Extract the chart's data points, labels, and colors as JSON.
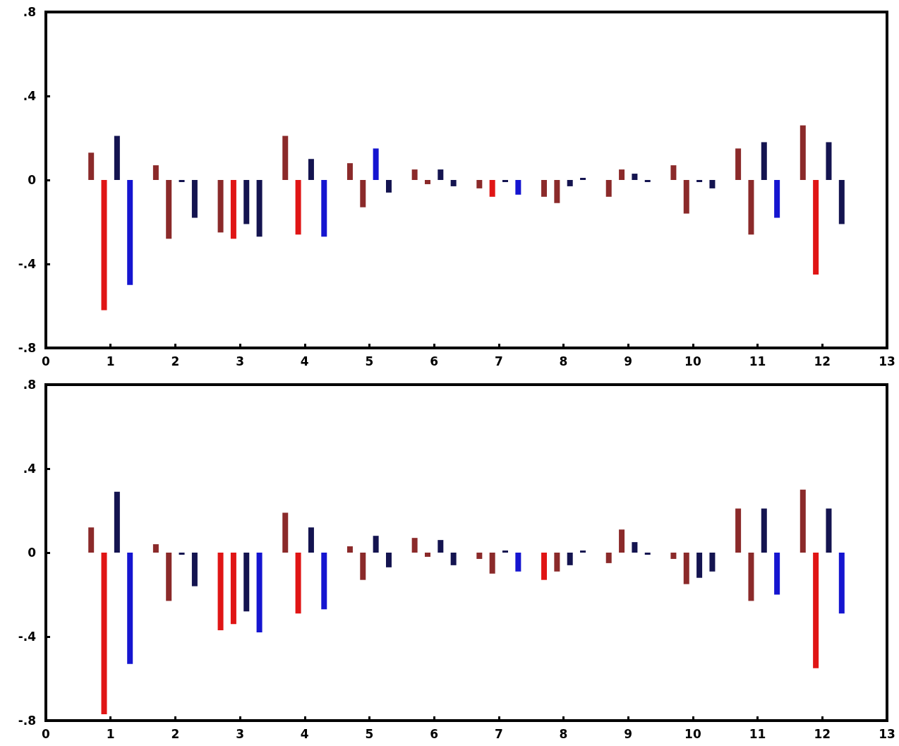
{
  "chart_data": [
    {
      "type": "bar",
      "xlim": [
        0,
        13
      ],
      "xticks": [
        0,
        1,
        2,
        3,
        4,
        5,
        6,
        7,
        8,
        9,
        10,
        11,
        12,
        13
      ],
      "ylim": [
        -0.8,
        0.8
      ],
      "yticks": [
        {
          "value": -0.8,
          "label": "-.8"
        },
        {
          "value": -0.4,
          "label": "-.4"
        },
        0,
        {
          "value": 0.4,
          "label": ".4"
        },
        {
          "value": 0.8,
          "label": ".8"
        }
      ],
      "series": [
        {
          "x": [
            0.7,
            1.7,
            2.7,
            3.7,
            4.7,
            5.7,
            6.7,
            7.7,
            8.7,
            9.7,
            10.7,
            11.7
          ],
          "values": [
            0.13,
            0.07,
            -0.25,
            0.21,
            0.08,
            0.05,
            -0.04,
            -0.08,
            -0.08,
            0.07,
            0.15,
            0.26
          ],
          "colors": [
            "#8b2a2a",
            "#8b2a2a",
            "#8b2a2a",
            "#8b2a2a",
            "#8b2a2a",
            "#8b2a2a",
            "#8b2a2a",
            "#8b2a2a",
            "#8b2a2a",
            "#8b2a2a",
            "#8b2a2a",
            "#8b2a2a"
          ]
        },
        {
          "x": [
            0.9,
            1.9,
            2.9,
            3.9,
            4.9,
            5.9,
            6.9,
            7.9,
            8.9,
            9.9,
            10.9,
            11.9
          ],
          "values": [
            -0.62,
            -0.28,
            -0.28,
            -0.26,
            -0.13,
            -0.02,
            -0.08,
            -0.11,
            0.05,
            -0.16,
            -0.26,
            -0.45
          ],
          "colors": [
            "#e01515",
            "#8b2a2a",
            "#e01515",
            "#e01515",
            "#8b2a2a",
            "#8b2a2a",
            "#e01515",
            "#8b2a2a",
            "#8b2a2a",
            "#8b2a2a",
            "#8b2a2a",
            "#e01515"
          ]
        },
        {
          "x": [
            1.1,
            2.1,
            3.1,
            4.1,
            5.1,
            6.1,
            7.1,
            8.1,
            9.1,
            10.1,
            11.1,
            12.1
          ],
          "values": [
            0.21,
            -0.01,
            -0.21,
            0.1,
            0.15,
            0.05,
            -0.01,
            -0.03,
            0.03,
            -0.01,
            0.18,
            0.18
          ],
          "colors": [
            "#141450",
            "#141450",
            "#141450",
            "#141450",
            "#1515d0",
            "#141450",
            "#141450",
            "#141450",
            "#141450",
            "#141450",
            "#141450",
            "#141450"
          ]
        },
        {
          "x": [
            1.3,
            2.3,
            3.3,
            4.3,
            5.3,
            6.3,
            7.3,
            8.3,
            9.3,
            10.3,
            11.3,
            12.3
          ],
          "values": [
            -0.5,
            -0.18,
            -0.27,
            -0.27,
            -0.06,
            -0.03,
            -0.07,
            0.01,
            -0.01,
            -0.04,
            -0.18,
            -0.21
          ],
          "colors": [
            "#1515d0",
            "#141450",
            "#141450",
            "#1515d0",
            "#141450",
            "#141450",
            "#1515d0",
            "#141450",
            "#141450",
            "#141450",
            "#1515d0",
            "#141450"
          ]
        }
      ]
    },
    {
      "type": "bar",
      "xlim": [
        0,
        13
      ],
      "xticks": [
        0,
        1,
        2,
        3,
        4,
        5,
        6,
        7,
        8,
        9,
        10,
        11,
        12,
        13
      ],
      "ylim": [
        -0.8,
        0.8
      ],
      "yticks": [
        {
          "value": -0.8,
          "label": "-.8"
        },
        {
          "value": -0.4,
          "label": "-.4"
        },
        0,
        {
          "value": 0.4,
          "label": ".4"
        },
        {
          "value": 0.8,
          "label": ".8"
        }
      ],
      "series": [
        {
          "x": [
            0.7,
            1.7,
            2.7,
            3.7,
            4.7,
            5.7,
            6.7,
            7.7,
            8.7,
            9.7,
            10.7,
            11.7
          ],
          "values": [
            0.12,
            0.04,
            -0.37,
            0.19,
            0.03,
            0.07,
            -0.03,
            -0.13,
            -0.05,
            -0.03,
            0.21,
            0.3
          ],
          "colors": [
            "#8b2a2a",
            "#8b2a2a",
            "#e01515",
            "#8b2a2a",
            "#8b2a2a",
            "#8b2a2a",
            "#8b2a2a",
            "#e01515",
            "#8b2a2a",
            "#8b2a2a",
            "#8b2a2a",
            "#8b2a2a"
          ]
        },
        {
          "x": [
            0.9,
            1.9,
            2.9,
            3.9,
            4.9,
            5.9,
            6.9,
            7.9,
            8.9,
            9.9,
            10.9,
            11.9
          ],
          "values": [
            -0.77,
            -0.23,
            -0.34,
            -0.29,
            -0.13,
            -0.02,
            -0.1,
            -0.09,
            0.11,
            -0.15,
            -0.23,
            -0.55
          ],
          "colors": [
            "#e01515",
            "#8b2a2a",
            "#e01515",
            "#e01515",
            "#8b2a2a",
            "#8b2a2a",
            "#8b2a2a",
            "#8b2a2a",
            "#8b2a2a",
            "#8b2a2a",
            "#8b2a2a",
            "#e01515"
          ]
        },
        {
          "x": [
            1.1,
            2.1,
            3.1,
            4.1,
            5.1,
            6.1,
            7.1,
            8.1,
            9.1,
            10.1,
            11.1,
            12.1
          ],
          "values": [
            0.29,
            -0.01,
            -0.28,
            0.12,
            0.08,
            0.06,
            0.01,
            -0.06,
            0.05,
            -0.12,
            0.21,
            0.21
          ],
          "colors": [
            "#141450",
            "#141450",
            "#141450",
            "#141450",
            "#141450",
            "#141450",
            "#141450",
            "#141450",
            "#141450",
            "#141450",
            "#141450",
            "#141450"
          ]
        },
        {
          "x": [
            1.3,
            2.3,
            3.3,
            4.3,
            5.3,
            6.3,
            7.3,
            8.3,
            9.3,
            10.3,
            11.3,
            12.3
          ],
          "values": [
            -0.53,
            -0.16,
            -0.38,
            -0.27,
            -0.07,
            -0.06,
            -0.09,
            0.01,
            -0.01,
            -0.09,
            -0.2,
            -0.29
          ],
          "colors": [
            "#1515d0",
            "#141450",
            "#1515d0",
            "#1515d0",
            "#141450",
            "#141450",
            "#1515d0",
            "#141450",
            "#141450",
            "#141450",
            "#1515d0",
            "#1515d0"
          ]
        }
      ]
    }
  ]
}
